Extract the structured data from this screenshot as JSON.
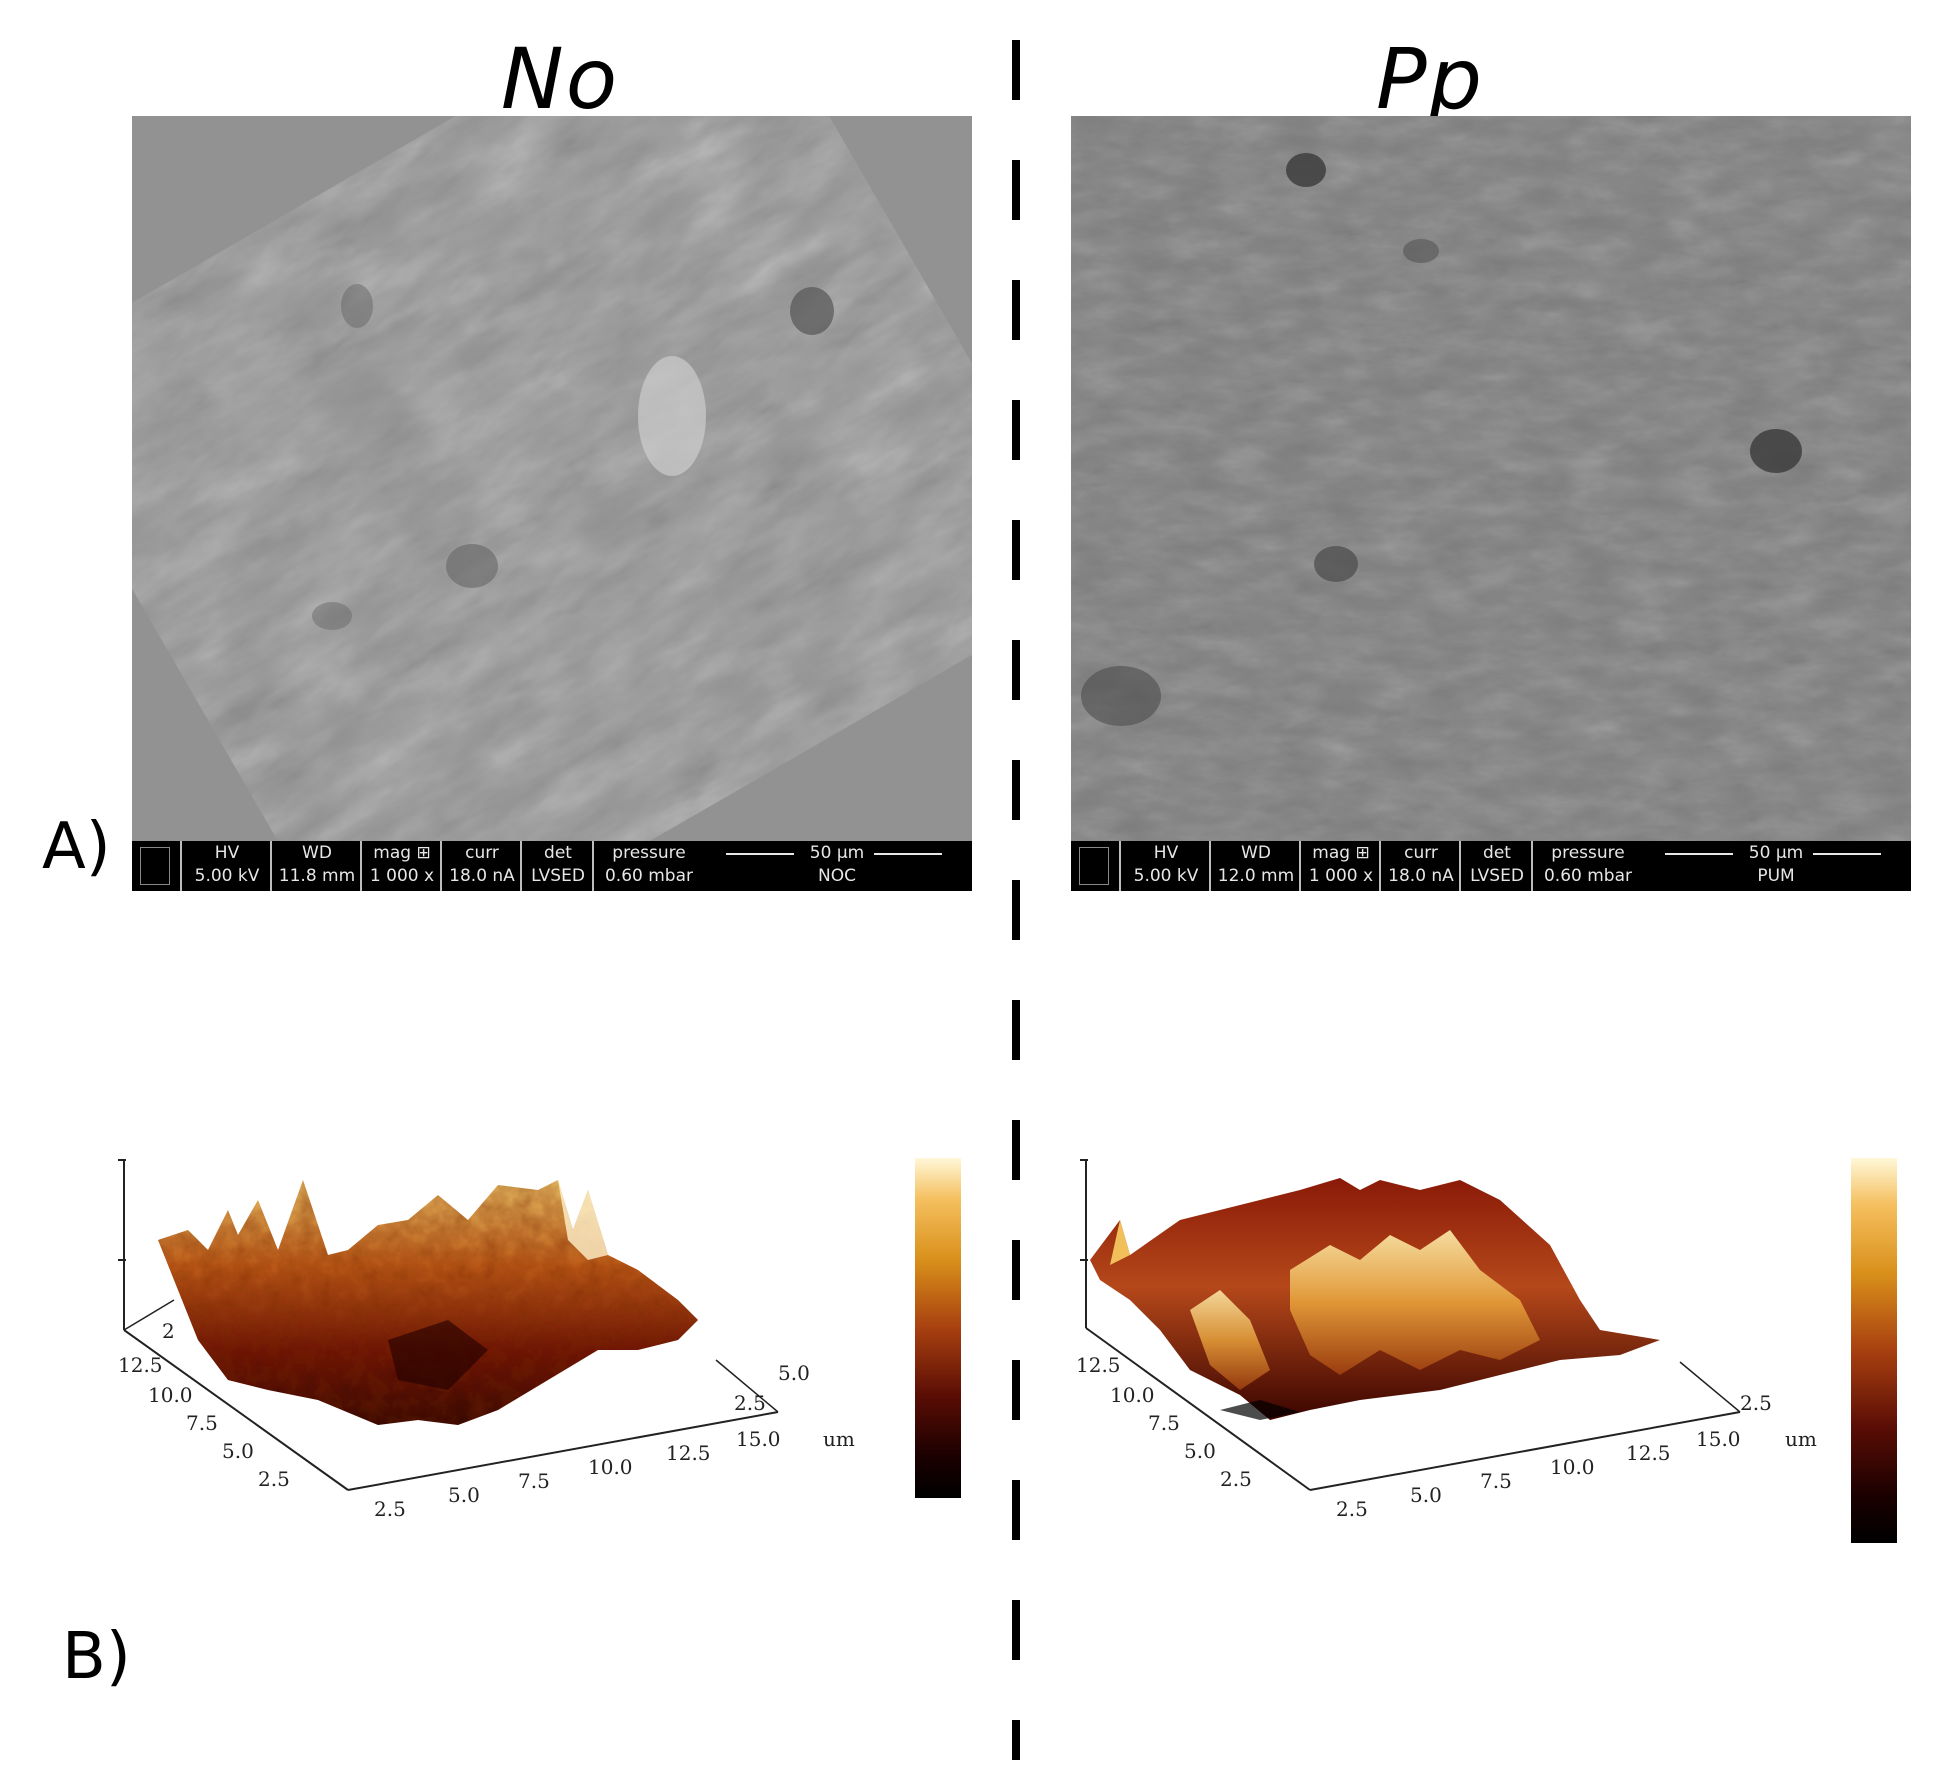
{
  "columns": {
    "left_title": "No",
    "right_title": "Pp"
  },
  "panel_labels": {
    "a": "A)",
    "b": "B)"
  },
  "sem": {
    "left": {
      "hv_label": "HV",
      "hv": "5.00 kV",
      "wd_label": "WD",
      "wd": "11.8 mm",
      "mag_label": "mag ⊞",
      "mag": "1 000 x",
      "curr_label": "curr",
      "curr": "18.0 nA",
      "det_label": "det",
      "det": "LVSED",
      "pressure_label": "pressure",
      "pressure": "0.60 mbar",
      "scale": "50 µm",
      "sample": "NOC"
    },
    "right": {
      "hv_label": "HV",
      "hv": "5.00 kV",
      "wd_label": "WD",
      "wd": "12.0 mm",
      "mag_label": "mag ⊞",
      "mag": "1 000 x",
      "curr_label": "curr",
      "curr": "18.0 nA",
      "det_label": "det",
      "det": "LVSED",
      "pressure_label": "pressure",
      "pressure": "0.60 mbar",
      "scale": "50 µm",
      "sample": "PUM"
    }
  },
  "afm": {
    "left": {
      "x_ticks": [
        "2.5",
        "5.0",
        "7.5",
        "10.0",
        "12.5",
        "15.0"
      ],
      "y_ticks": [
        "2.5",
        "5.0",
        "7.5",
        "10.0",
        "12.5"
      ],
      "right_ticks": [
        "2.5",
        "5.0"
      ],
      "unit": "um",
      "z_tick": "2"
    },
    "right": {
      "x_ticks": [
        "2.5",
        "5.0",
        "7.5",
        "10.0",
        "12.5",
        "15.0"
      ],
      "y_ticks": [
        "2.5",
        "5.0",
        "7.5",
        "10.0",
        "12.5"
      ],
      "right_ticks": [
        "2.5"
      ],
      "unit": "um"
    }
  },
  "colors": {
    "sem_left": "#8f8f8f",
    "sem_right": "#7b7b7b",
    "afm_dark": "#3a0500",
    "afm_mid": "#a33a10",
    "afm_light": "#f2c05a"
  }
}
